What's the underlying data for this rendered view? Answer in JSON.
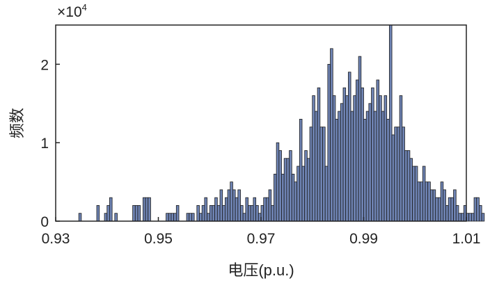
{
  "chart_data": {
    "type": "bar",
    "xlabel": "电压(p.u.)",
    "ylabel": "频数",
    "y_multiplier_base": "×10",
    "y_multiplier_exp": "4",
    "xlim": [
      0.93,
      1.01
    ],
    "ylim": [
      0,
      2.5
    ],
    "xticks": [
      0.93,
      0.95,
      0.97,
      0.99,
      1.01
    ],
    "xtick_labels": [
      "0.93",
      "0.95",
      "0.97",
      "0.99",
      "1.01"
    ],
    "yticks": [
      0,
      1,
      2
    ],
    "ytick_labels": [
      "0",
      "1",
      "2"
    ],
    "bin_start": 0.93,
    "bin_width": 0.0005,
    "bar_color": "#6f84b4",
    "grid": false,
    "values": [
      0,
      0,
      0,
      0,
      0,
      0,
      0,
      0,
      0,
      0.1,
      0,
      0,
      0,
      0,
      0,
      0,
      0.2,
      0,
      0,
      0.1,
      0.2,
      0.3,
      0,
      0.1,
      0,
      0,
      0,
      0,
      0,
      0,
      0.2,
      0.2,
      0.2,
      0,
      0.3,
      0.3,
      0.3,
      0,
      0,
      0,
      0,
      0,
      0,
      0.1,
      0.1,
      0.1,
      0.1,
      0.2,
      0,
      0,
      0,
      0.1,
      0.1,
      0.1,
      0,
      0.2,
      0.1,
      0.2,
      0.3,
      0.1,
      0.2,
      0.2,
      0.3,
      0.2,
      0.4,
      0.2,
      0.3,
      0.4,
      0.5,
      0.4,
      0.3,
      0.4,
      0.2,
      0.1,
      0.3,
      0.2,
      0.2,
      0.3,
      0.2,
      0.1,
      0.2,
      0.3,
      0.3,
      0.4,
      0.2,
      0.6,
      1.0,
      0.9,
      0.6,
      0.8,
      0.8,
      0.9,
      0.6,
      0.5,
      0.7,
      1.3,
      0.7,
      0.9,
      0.8,
      1.2,
      1.6,
      1.4,
      1.7,
      1.2,
      1.2,
      0.7,
      2.0,
      2.2,
      1.6,
      1.3,
      1.4,
      1.5,
      1.7,
      1.6,
      1.9,
      1.4,
      1.6,
      1.8,
      2.1,
      1.7,
      1.3,
      1.4,
      1.5,
      1.7,
      1.4,
      1.8,
      1.6,
      1.4,
      1.6,
      1.3,
      2.5,
      1.1,
      1.2,
      1.2,
      1.6,
      1.2,
      0.9,
      0.9,
      0.8,
      0.7,
      0.7,
      0.5,
      0.5,
      0.7,
      0.5,
      0.5,
      0.4,
      0.4,
      0.3,
      0.3,
      0.5,
      0.4,
      0.2,
      0.3,
      0.3,
      0.4,
      0.2,
      0.1,
      0.1,
      0.2,
      0.1,
      0.1,
      0.1,
      0.3,
      0.3,
      0.2,
      0.1
    ]
  }
}
